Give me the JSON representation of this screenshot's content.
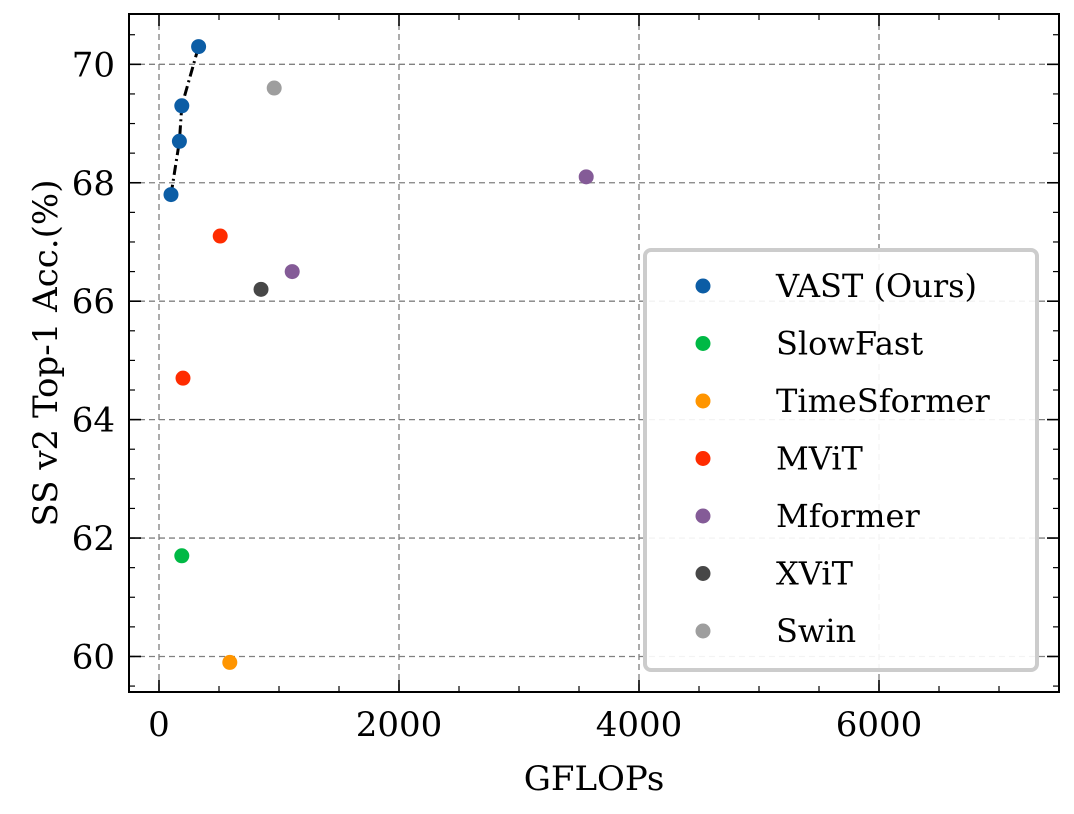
{
  "chart_data": {
    "type": "scatter",
    "xlabel": "GFLOPs",
    "ylabel": "SS v2 Top-1 Acc.(%)",
    "xlim": [
      -250,
      7500
    ],
    "ylim": [
      59.4,
      70.85
    ],
    "xticks": [
      0,
      2000,
      4000,
      6000
    ],
    "yticks": [
      60,
      62,
      64,
      66,
      68,
      70
    ],
    "grid": true,
    "legend_position": "lower-right",
    "series": [
      {
        "name": "VAST (Ours)",
        "color": "#0C5DA5",
        "connected": true,
        "x": [
          100,
          170,
          190,
          330
        ],
        "y": [
          67.8,
          68.7,
          69.3,
          70.3
        ]
      },
      {
        "name": "SlowFast",
        "color": "#00B945",
        "x": [
          190
        ],
        "y": [
          61.7
        ]
      },
      {
        "name": "TimeSformer",
        "color": "#FF9500",
        "x": [
          590
        ],
        "y": [
          59.9
        ]
      },
      {
        "name": "MViT",
        "color": "#FF2C00",
        "x": [
          510,
          200
        ],
        "y": [
          67.1,
          64.7
        ]
      },
      {
        "name": "Mformer",
        "color": "#845B97",
        "x": [
          3560,
          1110
        ],
        "y": [
          68.1,
          66.5
        ]
      },
      {
        "name": "XViT",
        "color": "#474747",
        "x": [
          850
        ],
        "y": [
          66.2
        ]
      },
      {
        "name": "Swin",
        "color": "#9E9E9E",
        "x": [
          960
        ],
        "y": [
          69.6
        ]
      }
    ]
  }
}
